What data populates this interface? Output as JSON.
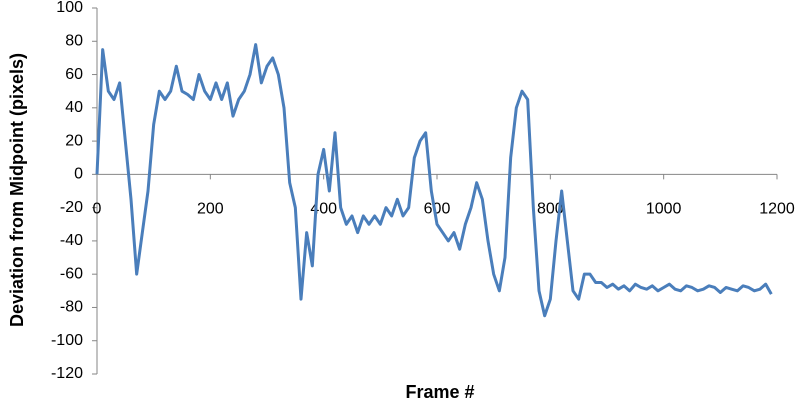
{
  "chart_data": {
    "type": "line",
    "x_label": "Frame #",
    "y_label": "Deviation from Midpoint (pixels)",
    "color": "#4a7ebb",
    "xlim": [
      0,
      1200
    ],
    "xticks": [
      0,
      200,
      400,
      600,
      800,
      1000,
      1200
    ],
    "ylim": [
      -120,
      100
    ],
    "yticks": [
      -120,
      -100,
      -80,
      -60,
      -40,
      -20,
      0,
      20,
      40,
      60,
      80,
      100
    ],
    "x": [
      0,
      10,
      20,
      30,
      40,
      50,
      60,
      70,
      80,
      90,
      100,
      110,
      120,
      130,
      140,
      150,
      160,
      170,
      180,
      190,
      200,
      210,
      220,
      230,
      240,
      250,
      260,
      270,
      280,
      290,
      300,
      310,
      320,
      330,
      340,
      350,
      360,
      370,
      380,
      390,
      400,
      410,
      420,
      430,
      440,
      450,
      460,
      470,
      480,
      490,
      500,
      510,
      520,
      530,
      540,
      550,
      560,
      570,
      580,
      590,
      600,
      610,
      620,
      630,
      640,
      650,
      660,
      670,
      680,
      690,
      700,
      710,
      720,
      730,
      740,
      750,
      760,
      770,
      780,
      790,
      800,
      810,
      820,
      830,
      840,
      850,
      860,
      870,
      880,
      890,
      900,
      910,
      920,
      930,
      940,
      950,
      960,
      970,
      980,
      990,
      1000,
      1010,
      1020,
      1030,
      1040,
      1050,
      1060,
      1070,
      1080,
      1090,
      1100,
      1110,
      1120,
      1130,
      1140,
      1150,
      1160,
      1170,
      1180,
      1190
    ],
    "values": [
      0,
      75,
      50,
      45,
      55,
      20,
      -15,
      -60,
      -35,
      -10,
      30,
      50,
      45,
      50,
      65,
      50,
      48,
      45,
      60,
      50,
      45,
      55,
      45,
      55,
      35,
      45,
      50,
      60,
      78,
      55,
      65,
      70,
      60,
      40,
      -5,
      -20,
      -75,
      -35,
      -55,
      0,
      15,
      -10,
      25,
      -20,
      -30,
      -25,
      -35,
      -25,
      -30,
      -25,
      -30,
      -20,
      -25,
      -15,
      -25,
      -20,
      10,
      20,
      25,
      -10,
      -30,
      -35,
      -40,
      -35,
      -45,
      -30,
      -20,
      -5,
      -15,
      -40,
      -60,
      -70,
      -50,
      10,
      40,
      50,
      45,
      -20,
      -70,
      -85,
      -75,
      -40,
      -10,
      -40,
      -70,
      -75,
      -60,
      -60,
      -65,
      -65,
      -68,
      -66,
      -69,
      -67,
      -70,
      -66,
      -68,
      -69,
      -67,
      -70,
      -68,
      -66,
      -69,
      -70,
      -67,
      -68,
      -70,
      -69,
      -67,
      -68,
      -71,
      -68,
      -69,
      -70,
      -67,
      -68,
      -70,
      -69,
      -66,
      -72
    ]
  }
}
